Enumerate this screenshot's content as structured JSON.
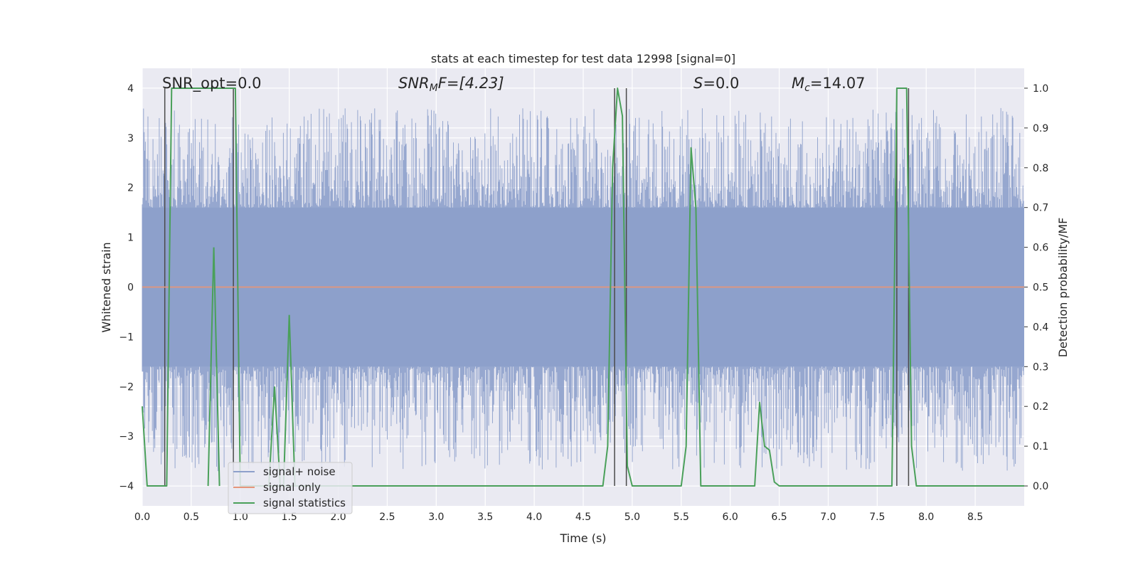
{
  "chart_data": {
    "type": "line",
    "title": "stats at each timestep for test data 12998 [signal=0]",
    "xlabel": "Time (s)",
    "ylabel_left": "Whitened strain",
    "ylabel_right": "Detection probability/MF",
    "xlim": [
      0.0,
      9.0
    ],
    "ylim_left": [
      -4.4,
      4.4
    ],
    "ylim_right": [
      -0.05,
      1.05
    ],
    "x_ticks": [
      "0.0",
      "0.5",
      "1.0",
      "1.5",
      "2.0",
      "2.5",
      "3.0",
      "3.5",
      "4.0",
      "4.5",
      "5.0",
      "5.5",
      "6.0",
      "6.5",
      "7.0",
      "7.5",
      "8.0",
      "8.5"
    ],
    "y_ticks_left": [
      "−4",
      "−3",
      "−2",
      "−1",
      "0",
      "1",
      "2",
      "3",
      "4"
    ],
    "y_ticks_right": [
      "0.0",
      "0.1",
      "0.2",
      "0.3",
      "0.4",
      "0.5",
      "0.6",
      "0.7",
      "0.8",
      "0.9",
      "1.0"
    ],
    "grid": true,
    "legend_position": "lower-left",
    "annotations": {
      "snr_opt": "SNR_opt=0.0",
      "snr_mf_name": "SNR",
      "snr_mf_sub": "M",
      "snr_mf_rest": "F=[4.23]",
      "s_name": "S",
      "s_value": "=0.0",
      "mc_name": "M",
      "mc_sub": "c",
      "mc_value": "=14.07"
    },
    "series": [
      {
        "name": "signal+ noise",
        "color": "#8da0cb",
        "axis": "left",
        "description_values": {
          "typical_range": [
            -1.6,
            1.6
          ],
          "peak_range": [
            -3.7,
            3.6
          ]
        }
      },
      {
        "name": "signal only",
        "color": "#e5957a",
        "axis": "left",
        "x": [
          0.0,
          9.0
        ],
        "y": [
          0.0,
          0.0
        ]
      },
      {
        "name": "signal statistics",
        "color": "#4aa05a",
        "axis": "right",
        "x": [
          0.0,
          0.05,
          0.1,
          0.15,
          0.2,
          0.25,
          0.3,
          0.35,
          0.4,
          0.45,
          0.5,
          0.55,
          0.6,
          0.65,
          0.7,
          0.75,
          0.8,
          0.85,
          0.9,
          0.95,
          1.0,
          1.05,
          1.1,
          1.15,
          1.2,
          1.25,
          1.3,
          1.35,
          1.4,
          1.45,
          1.5,
          1.55,
          1.6,
          1.65,
          1.7,
          1.75,
          1.8,
          2.0,
          2.5,
          3.0,
          3.5,
          4.0,
          4.5,
          4.6,
          4.7,
          4.75,
          4.8,
          4.85,
          4.9,
          4.95,
          5.0,
          5.05,
          5.1,
          5.5,
          5.55,
          5.6,
          5.65,
          5.7,
          5.75,
          5.8,
          5.85,
          5.9,
          6.0,
          6.2,
          6.25,
          6.3,
          6.35,
          6.4,
          6.45,
          6.5,
          6.55,
          6.6,
          6.7,
          7.0,
          7.5,
          7.65,
          7.7,
          7.75,
          7.8,
          7.85,
          7.9,
          7.95,
          8.0,
          8.5,
          8.9,
          9.0
        ],
        "y": [
          0.2,
          0.0,
          0.0,
          0.0,
          0.0,
          0.0,
          1.0,
          1.0,
          1.0,
          1.0,
          1.0,
          1.0,
          1.0,
          1.0,
          1.0,
          1.0,
          1.0,
          1.0,
          1.0,
          1.0,
          0.0,
          0.0,
          0.0,
          0.0,
          0.0,
          0.0,
          0.0,
          0.0,
          0.0,
          0.0,
          0.0,
          0.0,
          0.0,
          0.0,
          0.0,
          0.0,
          0.0,
          0.0,
          0.0,
          0.0,
          0.0,
          0.0,
          0.0,
          0.0,
          0.0,
          0.1,
          0.8,
          1.0,
          0.93,
          0.05,
          0.0,
          0.0,
          0.0,
          0.0,
          0.1,
          0.85,
          0.7,
          0.0,
          0.0,
          0.0,
          0.0,
          0.0,
          0.0,
          0.0,
          0.0,
          0.21,
          0.1,
          0.09,
          0.01,
          0.0,
          0.0,
          0.0,
          0.0,
          0.0,
          0.0,
          0.0,
          1.0,
          1.0,
          1.0,
          0.1,
          0.0,
          0.0,
          0.0,
          0.0,
          0.0,
          0.0
        ]
      }
    ],
    "vertical_markers_x": [
      0.23,
      0.93,
      4.82,
      4.94,
      7.7,
      7.82
    ],
    "extra_noise_blips": [
      {
        "x": 1.5,
        "y_right": 0.43
      },
      {
        "x": 1.35,
        "y_right": 0.25
      },
      {
        "x": 0.73,
        "y_right": 0.6
      }
    ]
  }
}
